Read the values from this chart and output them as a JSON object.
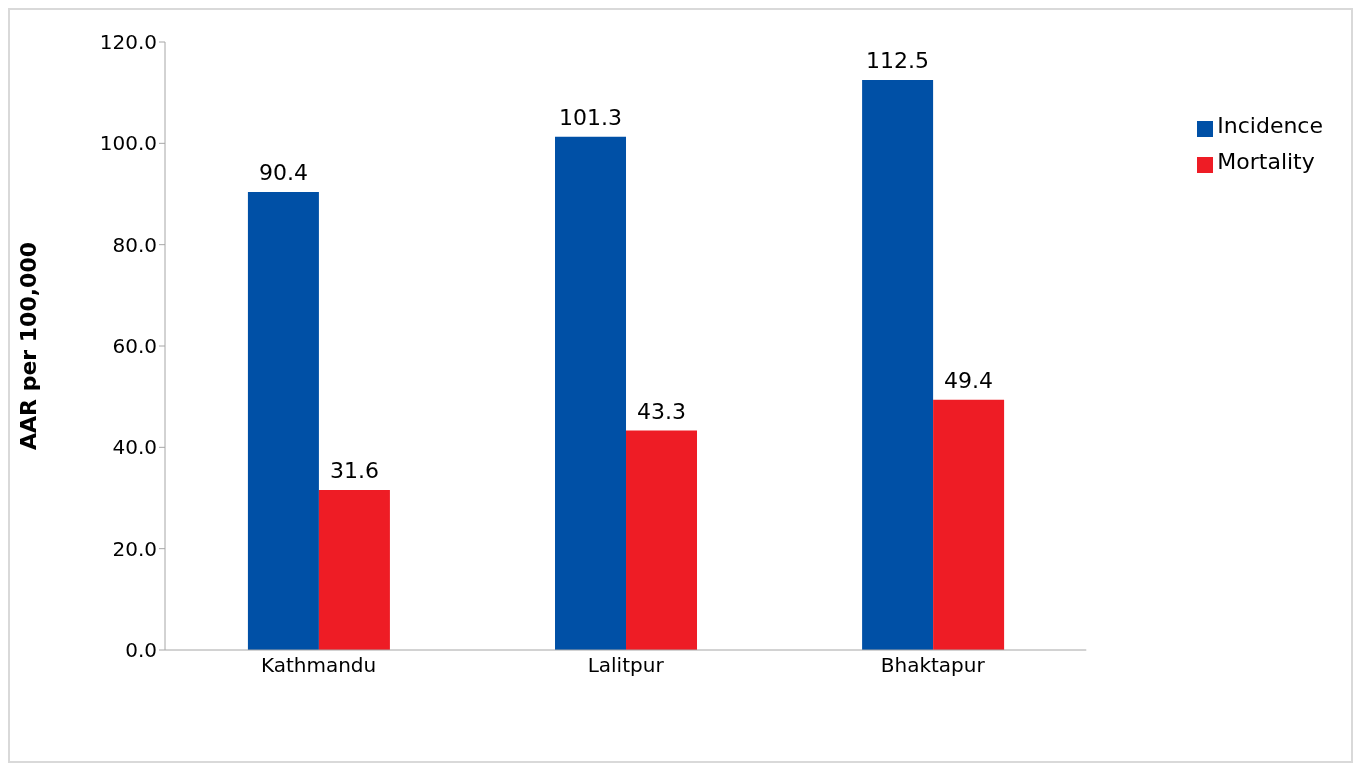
{
  "chart_data": {
    "type": "bar",
    "ylabel": "AAR per 100,000",
    "categories": [
      "Kathmandu",
      "Lalitpur",
      "Bhaktapur"
    ],
    "series": [
      {
        "name": "Incidence",
        "color": "#0050a6",
        "values": [
          90.4,
          101.3,
          112.5
        ]
      },
      {
        "name": "Mortality",
        "color": "#ee1c25",
        "values": [
          31.6,
          43.3,
          49.4
        ]
      }
    ],
    "ylim": [
      0,
      120
    ],
    "yticks": [
      {
        "value": 0,
        "label": "0.0"
      },
      {
        "value": 20,
        "label": "20.0"
      },
      {
        "value": 40,
        "label": "40.0"
      },
      {
        "value": 60,
        "label": "60.0"
      },
      {
        "value": 80,
        "label": "80.0"
      },
      {
        "value": 100,
        "label": "100.0"
      },
      {
        "value": 120,
        "label": "120.0"
      }
    ],
    "data_labels": true,
    "legend": "right",
    "grid": false
  }
}
